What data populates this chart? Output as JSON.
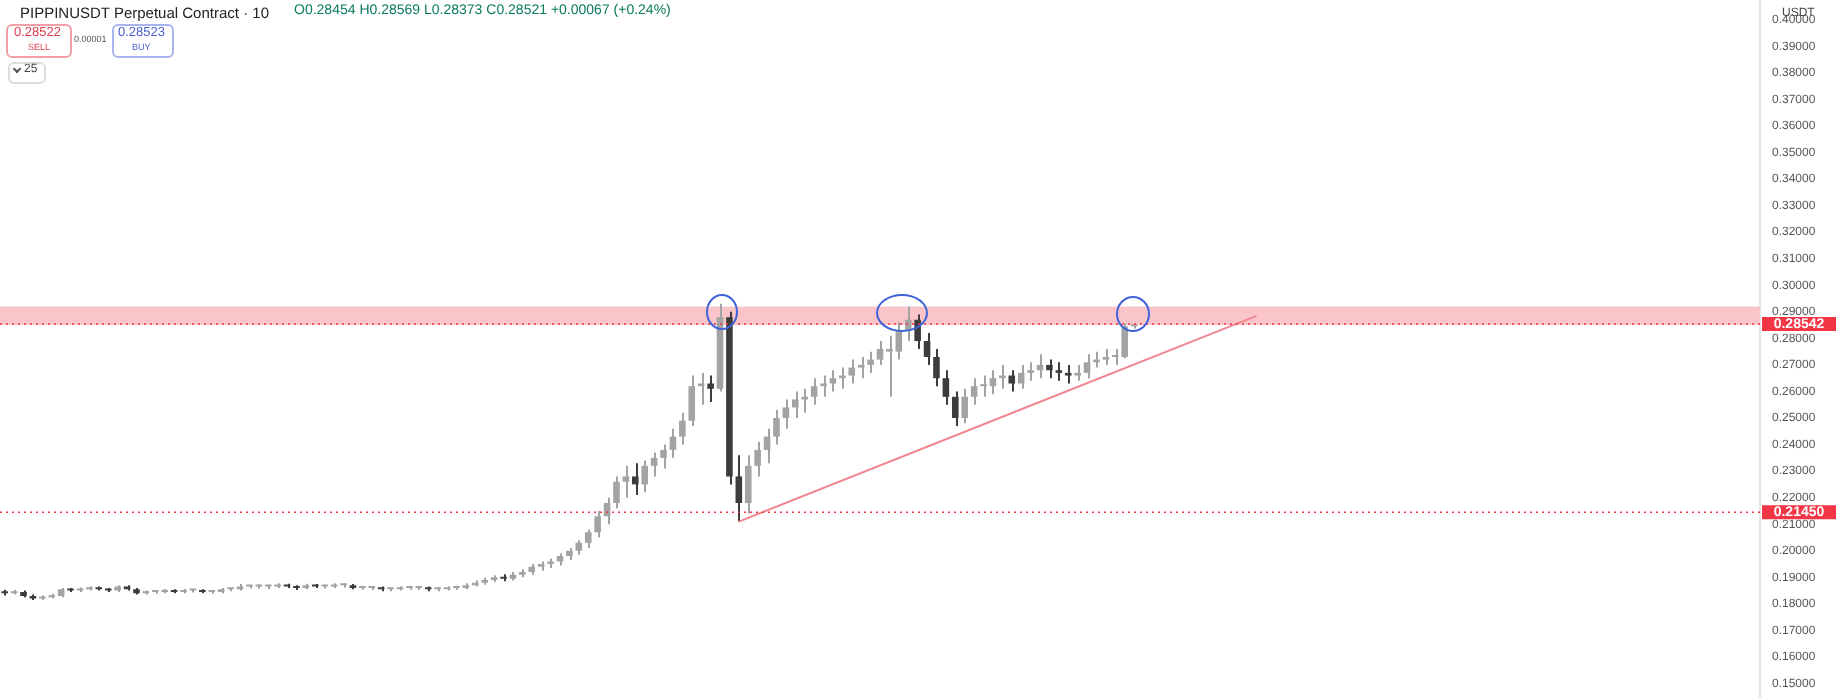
{
  "chart_data": {
    "type": "candlestick",
    "title": "PIPPINUSDT Perpetual Contract · 10",
    "subtitle": "O0.28454 H0.28569 L0.28373 C0.28521 +0.00067 (+0.24%)",
    "annotations": [
      "0.28522",
      "SELL",
      "0.00001",
      "0.28523",
      "BUY",
      "25",
      "USDT"
    ],
    "colors": [
      "#3c3c3c",
      "#a3a3a3",
      "#3c3c3c",
      "#3c3c3c",
      "#a3a3a3",
      "#a3a3a3",
      "#a3a3a3",
      "#3c3c3c",
      "#a3a3a3",
      "#a3a3a3",
      "#3c3c3c",
      "#3c3c3c",
      "#a3a3a3",
      "#3c3c3c",
      "#3c3c3c",
      "#a3a3a3",
      "#a3a3a3",
      "#a3a3a3",
      "#3c3c3c",
      "#a3a3a3",
      "#a3a3a3",
      "#3c3c3c",
      "#a3a3a3",
      "#a3a3a3",
      "#a3a3a3",
      "#a3a3a3",
      "#a3a3a3",
      "#a3a3a3",
      "#a3a3a3",
      "#a3a3a3",
      "#3c3c3c",
      "#3c3c3c",
      "#a3a3a3",
      "#3c3c3c",
      "#a3a3a3",
      "#a3a3a3",
      "#a3a3a3",
      "#3c3c3c",
      "#a3a3a3",
      "#a3a3a3",
      "#3c3c3c",
      "#a3a3a3",
      "#a3a3a3",
      "#a3a3a3",
      "#a3a3a3",
      "#3c3c3c",
      "#a3a3a3",
      "#a3a3a3",
      "#a3a3a3",
      "#a3a3a3",
      "#a3a3a3",
      "#a3a3a3",
      "#a3a3a3",
      "#3c3c3c",
      "#a3a3a3",
      "#a3a3a3",
      "#a3a3a3",
      "#a3a3a3",
      "#a3a3a3",
      "#a3a3a3",
      "#a3a3a3",
      "#a3a3a3",
      "#a3a3a3",
      "#a3a3a3",
      "#a3a3a3",
      "#a3a3a3",
      "#a3a3a3",
      "#3c3c3c",
      "#a3a3a3",
      "#a3a3a3",
      "#a3a3a3",
      "#a3a3a3",
      "#a3a3a3",
      "#a3a3a3",
      "#a3a3a3",
      "#3c3c3c",
      "#a3a3a3",
      "#3c3c3c",
      "#3c3c3c",
      "#a3a3a3",
      "#a3a3a3",
      "#a3a3a3",
      "#a3a3a3",
      "#a3a3a3",
      "#a3a3a3",
      "#a3a3a3",
      "#a3a3a3",
      "#a3a3a3",
      "#a3a3a3",
      "#a3a3a3",
      "#a3a3a3",
      "#a3a3a3",
      "#a3a3a3",
      "#a3a3a3",
      "#a3a3a3",
      "#a3a3a3",
      "#a3a3a3",
      "#3c3c3c",
      "#3c3c3c",
      "#3c3c3c",
      "#3c3c3c",
      "#3c3c3c",
      "#a3a3a3",
      "#a3a3a3",
      "#a3a3a3",
      "#a3a3a3",
      "#a3a3a3",
      "#3c3c3c",
      "#a3a3a3",
      "#a3a3a3",
      "#a3a3a3",
      "#3c3c3c",
      "#3c3c3c",
      "#3c3c3c",
      "#a3a3a3",
      "#a3a3a3",
      "#a3a3a3",
      "#a3a3a3",
      "#a3a3a3",
      "#a3a3a3",
      "#a3a3a3",
      null,
      null,
      null,
      null,
      null,
      null,
      null,
      null,
      null,
      null,
      null,
      null,
      null,
      null,
      null,
      null,
      null,
      null,
      null,
      null,
      null,
      null,
      null,
      null,
      null,
      null,
      null,
      null,
      null,
      null,
      null,
      null,
      null,
      null,
      null,
      null,
      null,
      null,
      null,
      null,
      null,
      null,
      null,
      null,
      null,
      null,
      null,
      null,
      null,
      null,
      null,
      null,
      null,
      null,
      null,
      null,
      null,
      null,
      null,
      null,
      null,
      null,
      null,
      null,
      null,
      null
    ],
    "tick_labels": "y",
    "categories": [
      null,
      null,
      null,
      null,
      null,
      null,
      null,
      null,
      null,
      null,
      null,
      null,
      null,
      null,
      null,
      null,
      null,
      null,
      null,
      null,
      null,
      null,
      null,
      null,
      null,
      null,
      null,
      null,
      null,
      null,
      null,
      null,
      null,
      null,
      null,
      null,
      null,
      null,
      null,
      null,
      null,
      null,
      null,
      null,
      null,
      null,
      null,
      null,
      null,
      null,
      null,
      null,
      null,
      null,
      null,
      null,
      null,
      null,
      null,
      null,
      null,
      null,
      null,
      null,
      null,
      null,
      null,
      null,
      null,
      null,
      null,
      null,
      null,
      null,
      null,
      null,
      null,
      null,
      null,
      null,
      null,
      null,
      null,
      null,
      null,
      null,
      null,
      null,
      null,
      null,
      null,
      null,
      null,
      null,
      null,
      null,
      null,
      null,
      null,
      null,
      null,
      null,
      null,
      null,
      null,
      null,
      null,
      null,
      null,
      null,
      null,
      null,
      null,
      null,
      null,
      null,
      null,
      null,
      null,
      null,
      null,
      null,
      null,
      null,
      null,
      null,
      null,
      null,
      null,
      null,
      null,
      null,
      null,
      null,
      null,
      null,
      null,
      null,
      null,
      null,
      null,
      null,
      null,
      null,
      null,
      null,
      null,
      null,
      null,
      null,
      null,
      null,
      null,
      null,
      null,
      null,
      null,
      null,
      null,
      null,
      null,
      null,
      null,
      null,
      null,
      null,
      null,
      null,
      null,
      null,
      null,
      null,
      null,
      null,
      null,
      null,
      null,
      null,
      null,
      null,
      null,
      null,
      null,
      null,
      null,
      null,
      null
    ],
    "ohlc": [
      [
        0.1845,
        0.1853,
        0.1832,
        0.184
      ],
      [
        0.184,
        0.1852,
        0.1835,
        0.1845
      ],
      [
        0.1845,
        0.185,
        0.1825,
        0.183
      ],
      [
        0.183,
        0.1835,
        0.1815,
        0.182
      ],
      [
        0.182,
        0.1832,
        0.1815,
        0.1825
      ],
      [
        0.1825,
        0.1838,
        0.182,
        0.183
      ],
      [
        0.183,
        0.186,
        0.1825,
        0.1855
      ],
      [
        0.1855,
        0.186,
        0.1845,
        0.185
      ],
      [
        0.185,
        0.1862,
        0.1845,
        0.1855
      ],
      [
        0.1855,
        0.1866,
        0.185,
        0.186
      ],
      [
        0.186,
        0.1865,
        0.185,
        0.1855
      ],
      [
        0.1855,
        0.186,
        0.1845,
        0.185
      ],
      [
        0.185,
        0.187,
        0.1845,
        0.1865
      ],
      [
        0.1865,
        0.187,
        0.185,
        0.1855
      ],
      [
        0.1855,
        0.186,
        0.1835,
        0.184
      ],
      [
        0.184,
        0.185,
        0.1835,
        0.1845
      ],
      [
        0.1845,
        0.1852,
        0.1838,
        0.1845
      ],
      [
        0.1845,
        0.1856,
        0.184,
        0.185
      ],
      [
        0.185,
        0.1855,
        0.184,
        0.1845
      ],
      [
        0.1845,
        0.1856,
        0.184,
        0.185
      ],
      [
        0.185,
        0.1856,
        0.1843,
        0.185
      ],
      [
        0.185,
        0.1855,
        0.184,
        0.1845
      ],
      [
        0.1845,
        0.1852,
        0.1838,
        0.1845
      ],
      [
        0.1845,
        0.186,
        0.184,
        0.1855
      ],
      [
        0.1855,
        0.186,
        0.1848,
        0.1855
      ],
      [
        0.1855,
        0.1875,
        0.185,
        0.1865
      ],
      [
        0.1865,
        0.1872,
        0.1858,
        0.1865
      ],
      [
        0.1865,
        0.1873,
        0.1858,
        0.1865
      ],
      [
        0.1865,
        0.1872,
        0.1856,
        0.1865
      ],
      [
        0.1865,
        0.1878,
        0.186,
        0.187
      ],
      [
        0.187,
        0.1876,
        0.186,
        0.1865
      ],
      [
        0.1865,
        0.187,
        0.1852,
        0.186
      ],
      [
        0.186,
        0.1876,
        0.1855,
        0.187
      ],
      [
        0.187,
        0.1875,
        0.186,
        0.1865
      ],
      [
        0.1865,
        0.1872,
        0.1858,
        0.1865
      ],
      [
        0.1865,
        0.1878,
        0.186,
        0.187
      ],
      [
        0.187,
        0.1877,
        0.1862,
        0.187
      ],
      [
        0.187,
        0.1875,
        0.1855,
        0.186
      ],
      [
        0.186,
        0.1866,
        0.1853,
        0.186
      ],
      [
        0.186,
        0.1867,
        0.1852,
        0.186
      ],
      [
        0.186,
        0.1865,
        0.1848,
        0.1855
      ],
      [
        0.1855,
        0.1862,
        0.1848,
        0.1855
      ],
      [
        0.1855,
        0.1866,
        0.185,
        0.186
      ],
      [
        0.186,
        0.1867,
        0.1853,
        0.186
      ],
      [
        0.186,
        0.1866,
        0.1852,
        0.186
      ],
      [
        0.186,
        0.1865,
        0.1848,
        0.1855
      ],
      [
        0.1855,
        0.1862,
        0.1848,
        0.1855
      ],
      [
        0.1855,
        0.1866,
        0.185,
        0.186
      ],
      [
        0.186,
        0.1868,
        0.1853,
        0.186
      ],
      [
        0.186,
        0.1878,
        0.1855,
        0.187
      ],
      [
        0.187,
        0.1888,
        0.1865,
        0.188
      ],
      [
        0.188,
        0.1898,
        0.1872,
        0.189
      ],
      [
        0.189,
        0.1908,
        0.1882,
        0.19
      ],
      [
        0.19,
        0.1912,
        0.1885,
        0.1895
      ],
      [
        0.1895,
        0.192,
        0.1888,
        0.191
      ],
      [
        0.191,
        0.193,
        0.19,
        0.192
      ],
      [
        0.192,
        0.195,
        0.191,
        0.194
      ],
      [
        0.194,
        0.196,
        0.1925,
        0.195
      ],
      [
        0.195,
        0.197,
        0.1935,
        0.196
      ],
      [
        0.196,
        0.199,
        0.1945,
        0.198
      ],
      [
        0.198,
        0.201,
        0.1965,
        0.2
      ],
      [
        0.2,
        0.204,
        0.1985,
        0.203
      ],
      [
        0.203,
        0.208,
        0.201,
        0.207
      ],
      [
        0.207,
        0.215,
        0.205,
        0.213
      ],
      [
        0.213,
        0.22,
        0.21,
        0.218
      ],
      [
        0.218,
        0.228,
        0.216,
        0.226
      ],
      [
        0.226,
        0.232,
        0.22,
        0.228
      ],
      [
        0.228,
        0.233,
        0.221,
        0.225
      ],
      [
        0.225,
        0.234,
        0.222,
        0.232
      ],
      [
        0.232,
        0.237,
        0.228,
        0.235
      ],
      [
        0.235,
        0.24,
        0.231,
        0.238
      ],
      [
        0.238,
        0.246,
        0.235,
        0.243
      ],
      [
        0.243,
        0.252,
        0.24,
        0.249
      ],
      [
        0.249,
        0.266,
        0.247,
        0.262
      ],
      [
        0.262,
        0.267,
        0.255,
        0.263
      ],
      [
        0.263,
        0.266,
        0.256,
        0.261
      ],
      [
        0.261,
        0.293,
        0.26,
        0.288
      ],
      [
        0.288,
        0.29,
        0.225,
        0.228
      ],
      [
        0.228,
        0.236,
        0.211,
        0.218
      ],
      [
        0.218,
        0.236,
        0.214,
        0.232
      ],
      [
        0.232,
        0.241,
        0.228,
        0.238
      ],
      [
        0.238,
        0.246,
        0.233,
        0.243
      ],
      [
        0.243,
        0.253,
        0.24,
        0.25
      ],
      [
        0.25,
        0.257,
        0.246,
        0.254
      ],
      [
        0.254,
        0.26,
        0.25,
        0.257
      ],
      [
        0.257,
        0.261,
        0.252,
        0.258
      ],
      [
        0.258,
        0.265,
        0.255,
        0.262
      ],
      [
        0.262,
        0.266,
        0.258,
        0.263
      ],
      [
        0.263,
        0.268,
        0.26,
        0.265
      ],
      [
        0.265,
        0.269,
        0.261,
        0.266
      ],
      [
        0.266,
        0.272,
        0.263,
        0.269
      ],
      [
        0.269,
        0.273,
        0.265,
        0.27
      ],
      [
        0.27,
        0.275,
        0.267,
        0.272
      ],
      [
        0.272,
        0.279,
        0.27,
        0.276
      ],
      [
        0.276,
        0.281,
        0.258,
        0.275
      ],
      [
        0.275,
        0.286,
        0.272,
        0.283
      ],
      [
        0.283,
        0.292,
        0.279,
        0.287
      ],
      [
        0.287,
        0.289,
        0.276,
        0.279
      ],
      [
        0.279,
        0.282,
        0.27,
        0.273
      ],
      [
        0.273,
        0.276,
        0.262,
        0.265
      ],
      [
        0.265,
        0.268,
        0.255,
        0.258
      ],
      [
        0.258,
        0.26,
        0.247,
        0.25
      ],
      [
        0.25,
        0.261,
        0.248,
        0.258
      ],
      [
        0.258,
        0.265,
        0.255,
        0.262
      ],
      [
        0.262,
        0.266,
        0.258,
        0.262
      ],
      [
        0.262,
        0.268,
        0.259,
        0.265
      ],
      [
        0.265,
        0.27,
        0.261,
        0.266
      ],
      [
        0.266,
        0.268,
        0.26,
        0.263
      ],
      [
        0.263,
        0.27,
        0.261,
        0.267
      ],
      [
        0.267,
        0.271,
        0.264,
        0.268
      ],
      [
        0.268,
        0.274,
        0.265,
        0.27
      ],
      [
        0.27,
        0.272,
        0.265,
        0.268
      ],
      [
        0.268,
        0.271,
        0.264,
        0.267
      ],
      [
        0.267,
        0.27,
        0.263,
        0.266
      ],
      [
        0.266,
        0.27,
        0.264,
        0.267
      ],
      [
        0.267,
        0.274,
        0.265,
        0.271
      ],
      [
        0.271,
        0.275,
        0.269,
        0.272
      ],
      [
        0.272,
        0.276,
        0.27,
        0.273
      ],
      [
        0.273,
        0.276,
        0.27,
        0.273
      ],
      [
        0.273,
        0.2855,
        0.2725,
        0.2845
      ],
      [
        0.28454,
        0.28569,
        0.28373,
        0.28521
      ],
      null,
      null,
      null,
      null,
      null,
      null,
      null,
      null,
      null,
      null,
      null,
      null,
      null,
      null,
      null,
      null,
      null,
      null,
      null,
      null,
      null,
      null,
      null,
      null,
      null,
      null,
      null,
      null,
      null,
      null,
      null,
      null,
      null,
      null,
      null,
      null,
      null,
      null,
      null,
      null,
      null,
      null,
      null,
      null,
      null,
      null,
      null,
      null,
      null,
      null,
      null,
      null,
      null,
      null,
      null,
      null,
      null,
      null,
      null,
      null,
      null,
      null,
      null,
      null,
      null,
      null
    ],
    "series": [
      {
        "type": "line",
        "color": "#f0868f",
        "values": [
          null,
          null,
          null,
          null,
          null,
          null,
          null,
          null,
          null,
          null,
          null,
          null,
          null,
          null,
          null,
          null,
          null,
          null,
          null,
          null,
          null,
          null,
          null,
          null,
          null,
          null,
          null,
          null,
          null,
          null,
          null,
          null,
          null,
          null,
          null,
          null,
          null,
          null,
          null,
          null,
          null,
          null,
          null,
          null,
          null,
          null,
          null,
          null,
          null,
          null,
          null,
          null,
          null,
          null,
          null,
          null,
          null,
          null,
          null,
          null,
          null,
          null,
          null,
          null,
          null,
          null,
          null,
          null,
          null,
          null,
          null,
          null,
          null,
          null,
          null,
          null,
          null,
          null,
          0.211,
          null,
          null,
          null,
          null,
          null,
          null,
          null,
          null,
          null,
          null,
          null,
          null,
          null,
          null,
          null,
          null,
          null,
          null,
          null,
          null,
          null,
          null,
          null,
          null,
          null,
          null,
          null,
          null,
          null,
          null,
          null,
          null,
          null,
          null,
          null,
          null,
          null,
          null,
          null,
          null,
          null,
          null,
          null,
          null,
          null,
          null,
          null,
          null,
          null,
          null,
          null,
          null,
          null,
          null,
          0.2885,
          null,
          null,
          null,
          null,
          null,
          null,
          null,
          null,
          null,
          null,
          null,
          null,
          null,
          null,
          null,
          null,
          null,
          null,
          null,
          null,
          null,
          null,
          null,
          null,
          null,
          null,
          null,
          null,
          null,
          null,
          null,
          null,
          null,
          null,
          null,
          null,
          null,
          null,
          null,
          null,
          null,
          null,
          null,
          null,
          null,
          null,
          null,
          null,
          null,
          null,
          null,
          null,
          null
        ]
      }
    ],
    "bands": [
      {
        "axis": "y",
        "from": 0.285,
        "to": 0.292,
        "color": "#f9c5c9"
      }
    ],
    "ref_lines": [
      {
        "axis": "y",
        "value": 0.28542,
        "label": "0.28542",
        "color": "#f23645"
      },
      {
        "axis": "y",
        "value": 0.2145,
        "label": "0.21450",
        "color": "#f23645"
      }
    ],
    "ylim": [
      0.145,
      0.407
    ],
    "yticks": [
      {
        "value": 0.15,
        "label": "0.15000"
      },
      {
        "value": 0.16,
        "label": "0.16000"
      },
      {
        "value": 0.17,
        "label": "0.17000"
      },
      {
        "value": 0.18,
        "label": "0.18000"
      },
      {
        "value": 0.19,
        "label": "0.19000"
      },
      {
        "value": 0.2,
        "label": "0.20000"
      },
      {
        "value": 0.21,
        "label": "0.21000"
      },
      {
        "value": 0.22,
        "label": "0.22000"
      },
      {
        "value": 0.23,
        "label": "0.23000"
      },
      {
        "value": 0.24,
        "label": "0.24000"
      },
      {
        "value": 0.25,
        "label": "0.25000"
      },
      {
        "value": 0.26,
        "label": "0.26000"
      },
      {
        "value": 0.27,
        "label": "0.27000"
      },
      {
        "value": 0.28,
        "label": "0.28000"
      },
      {
        "value": 0.29,
        "label": "0.29000"
      },
      {
        "value": 0.3,
        "label": "0.30000"
      },
      {
        "value": 0.31,
        "label": "0.31000"
      },
      {
        "value": 0.32,
        "label": "0.32000"
      },
      {
        "value": 0.33,
        "label": "0.33000"
      },
      {
        "value": 0.34,
        "label": "0.34000"
      },
      {
        "value": 0.35,
        "label": "0.35000"
      },
      {
        "value": 0.36,
        "label": "0.36000"
      },
      {
        "value": 0.37,
        "label": "0.37000"
      },
      {
        "value": 0.38,
        "label": "0.38000"
      },
      {
        "value": 0.39,
        "label": "0.39000"
      },
      {
        "value": 0.4,
        "label": "0.40000"
      }
    ]
  }
}
